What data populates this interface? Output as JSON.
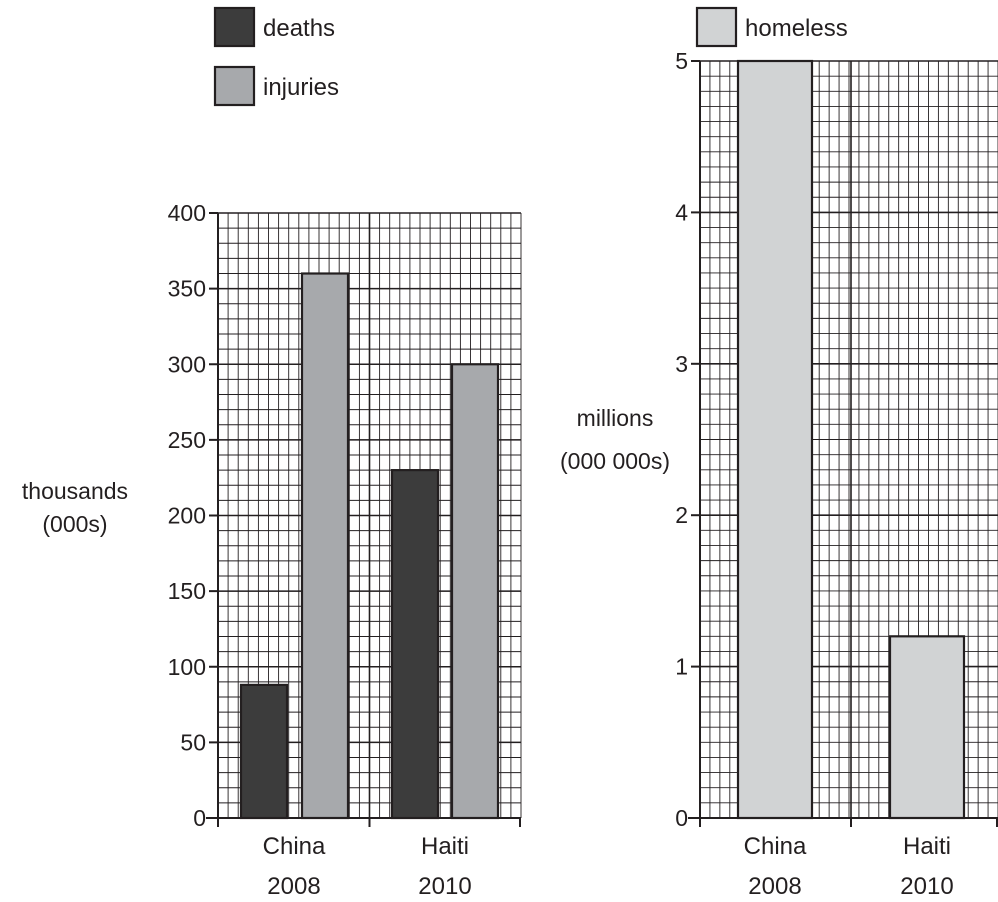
{
  "colors": {
    "deaths": "#3c3c3c",
    "injuries": "#a7a9ac",
    "homeless": "#d1d3d4",
    "grid_minor": "#231f20",
    "grid_major": "#231f20",
    "outline": "#231f20"
  },
  "legend": {
    "left": [
      {
        "series": "deaths",
        "label": "deaths"
      },
      {
        "series": "injuries",
        "label": "injuries"
      }
    ],
    "right": [
      {
        "series": "homeless",
        "label": "homeless"
      }
    ]
  },
  "chart_data": [
    {
      "type": "bar",
      "categories": [
        [
          "China",
          "2008"
        ],
        [
          "Haiti",
          "2010"
        ]
      ],
      "series": [
        {
          "name": "deaths",
          "values": [
            88,
            230
          ]
        },
        {
          "name": "injuries",
          "values": [
            360,
            300
          ]
        }
      ],
      "ylabel": [
        "thousands",
        "(000s)"
      ],
      "ylim": [
        0,
        400
      ],
      "yticks": [
        "0",
        "50",
        "100",
        "150",
        "200",
        "250",
        "300",
        "350",
        "400"
      ],
      "grid": true,
      "legend_position": "top"
    },
    {
      "type": "bar",
      "categories": [
        [
          "China",
          "2008"
        ],
        [
          "Haiti",
          "2010"
        ]
      ],
      "series": [
        {
          "name": "homeless",
          "values": [
            5,
            1.2
          ]
        }
      ],
      "ylabel": [
        "millions",
        "(000 000s)"
      ],
      "ylim": [
        0,
        5
      ],
      "yticks": [
        "0",
        "1",
        "2",
        "3",
        "4",
        "5"
      ],
      "grid": true,
      "legend_position": "top"
    }
  ]
}
